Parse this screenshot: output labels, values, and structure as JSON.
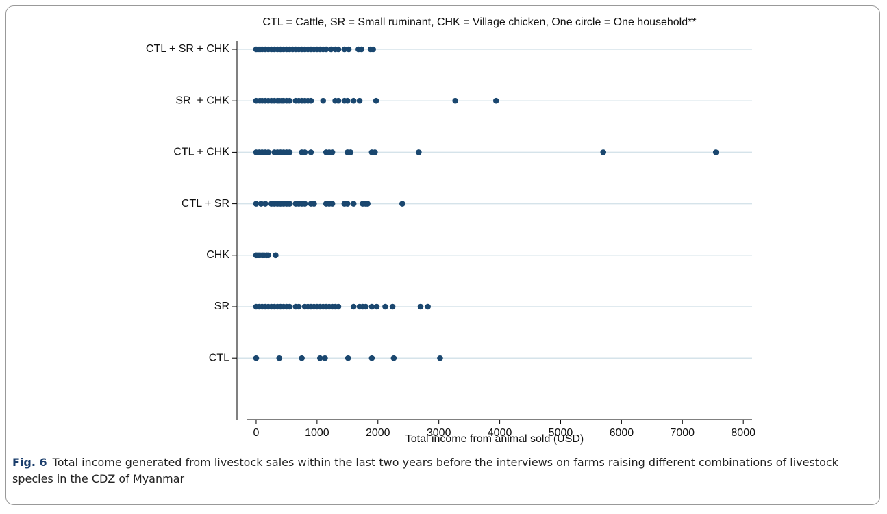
{
  "chart_data": {
    "type": "strip",
    "title": "CTL = Cattle, SR = Small ruminant, CHK = Village chicken, One circle = One household**",
    "xlabel": "Total income from animal sold (USD)",
    "categories": [
      "CTL + SR + CHK",
      "SR  + CHK",
      "CTL + CHK",
      "CTL + SR",
      "CHK",
      "SR",
      "CTL"
    ],
    "values": [
      [
        0,
        30,
        60,
        100,
        150,
        200,
        250,
        300,
        350,
        400,
        450,
        500,
        550,
        600,
        650,
        700,
        750,
        800,
        850,
        900,
        950,
        1000,
        1050,
        1100,
        1150,
        1230,
        1300,
        1350,
        1450,
        1520,
        1680,
        1730,
        1880,
        1920
      ],
      [
        0,
        60,
        100,
        150,
        200,
        250,
        300,
        350,
        380,
        420,
        450,
        500,
        550,
        650,
        700,
        750,
        800,
        850,
        900,
        1100,
        1300,
        1350,
        1450,
        1500,
        1600,
        1700,
        1970,
        3270,
        3940
      ],
      [
        0,
        50,
        100,
        150,
        200,
        300,
        350,
        400,
        450,
        500,
        550,
        750,
        800,
        900,
        1150,
        1200,
        1250,
        1500,
        1550,
        1900,
        1950,
        2670,
        5700,
        7550
      ],
      [
        0,
        80,
        150,
        250,
        300,
        350,
        400,
        450,
        500,
        550,
        650,
        700,
        750,
        800,
        900,
        950,
        1150,
        1200,
        1250,
        1450,
        1500,
        1600,
        1750,
        1800,
        1830,
        2400
      ],
      [
        0,
        30,
        60,
        100,
        130,
        170,
        200,
        320
      ],
      [
        0,
        50,
        100,
        150,
        200,
        250,
        300,
        350,
        400,
        450,
        500,
        550,
        650,
        700,
        800,
        850,
        900,
        950,
        1000,
        1050,
        1100,
        1150,
        1200,
        1250,
        1300,
        1350,
        1600,
        1700,
        1750,
        1800,
        1900,
        1980,
        2120,
        2240,
        2700,
        2820
      ],
      [
        0,
        380,
        750,
        1050,
        1130,
        1510,
        1900,
        2260,
        3020
      ]
    ],
    "color": "#1a476f",
    "xlim": [
      -157,
      8144
    ],
    "xticks": [
      0,
      1000,
      2000,
      3000,
      4000,
      5000,
      6000,
      7000,
      8000
    ],
    "grid": true
  },
  "caption": {
    "label": "Fig. 6",
    "text": "Total income generated from livestock sales within the last two years before the interviews on farms raising different combinations of livestock species in the CDZ of Myanmar"
  }
}
